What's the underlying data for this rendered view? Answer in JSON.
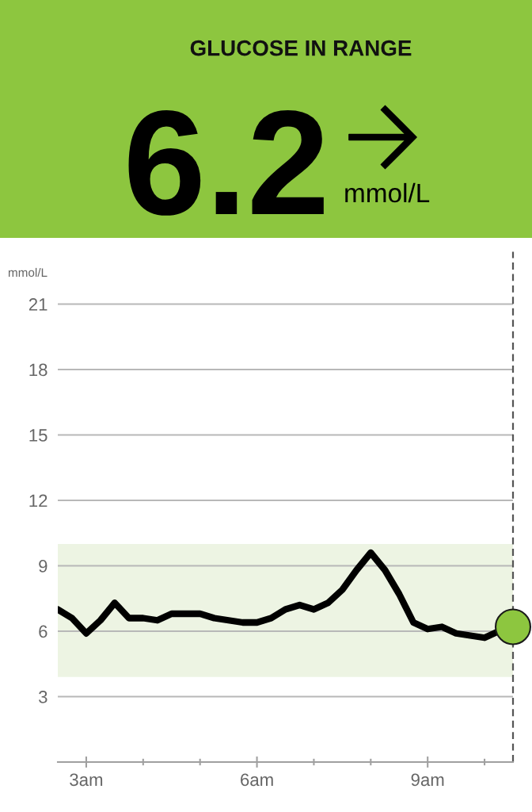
{
  "chart_data": {
    "type": "line",
    "title": "GLUCOSE IN RANGE",
    "ylabel": "mmol/L",
    "annotations": [
      "6.2",
      "mmol/L"
    ],
    "series": [
      {
        "color": "#000000",
        "x": [
          2.5,
          2.75,
          3.0,
          3.25,
          3.5,
          3.75,
          4.0,
          4.25,
          4.5,
          4.75,
          5.0,
          5.25,
          5.5,
          5.75,
          6.0,
          6.25,
          6.5,
          6.75,
          7.0,
          7.25,
          7.5,
          7.75,
          8.0,
          8.25,
          8.5,
          8.75,
          9.0,
          9.25,
          9.5,
          9.75,
          10.0,
          10.25
        ],
        "values": [
          7.0,
          6.6,
          5.9,
          6.5,
          7.3,
          6.6,
          6.6,
          6.5,
          6.8,
          6.8,
          6.8,
          6.6,
          6.5,
          6.4,
          6.4,
          6.6,
          7.0,
          7.2,
          7.0,
          7.3,
          7.9,
          8.8,
          9.6,
          8.8,
          7.7,
          6.4,
          6.1,
          6.2,
          5.9,
          5.8,
          5.7,
          6.0
        ]
      },
      {
        "type": "scatter",
        "color": "#8dc63f",
        "marker": "circle",
        "x": [
          10.5
        ],
        "values": [
          6.2
        ]
      }
    ],
    "xlim": [
      2.5,
      10.5
    ],
    "xticks": [
      {
        "value": 3,
        "label": "3am"
      },
      {
        "value": 4,
        "label": null
      },
      {
        "value": 5,
        "label": null
      },
      {
        "value": 6,
        "label": "6am"
      },
      {
        "value": 7,
        "label": null
      },
      {
        "value": 8,
        "label": null
      },
      {
        "value": 9,
        "label": "9am"
      },
      {
        "value": 10,
        "label": null
      }
    ],
    "ylim": [
      0,
      23.4
    ],
    "yticks": [
      3,
      6,
      9,
      12,
      15,
      18,
      21
    ],
    "grid": "y",
    "bands": [
      {
        "axis": "y",
        "from": 3.9,
        "to": 10,
        "color": "#edf4e3"
      }
    ],
    "ref_lines": [
      {
        "axis": "x",
        "value": 10.5,
        "color": "#555555",
        "line_style": "dashed"
      }
    ]
  }
}
